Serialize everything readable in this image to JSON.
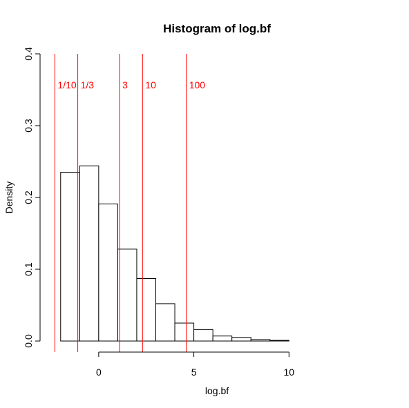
{
  "chart_data": {
    "type": "bar",
    "title": "Histogram of log.bf",
    "xlabel": "log.bf",
    "ylabel": "Density",
    "xlim": [
      -2.5,
      14.2
    ],
    "ylim": [
      0,
      0.4
    ],
    "x_ticks": [
      0,
      5,
      10
    ],
    "y_ticks": [
      0.0,
      0.1,
      0.2,
      0.3,
      0.4
    ],
    "x_tick_labels": [
      "0",
      "5",
      "10"
    ],
    "y_tick_labels": [
      "0.0",
      "0.1",
      "0.2",
      "0.3",
      "0.4"
    ],
    "bins": [
      {
        "x0": -2,
        "x1": -1,
        "density": 0.235
      },
      {
        "x0": -1,
        "x1": 0,
        "density": 0.244
      },
      {
        "x0": 0,
        "x1": 1,
        "density": 0.191
      },
      {
        "x0": 1,
        "x1": 2,
        "density": 0.128
      },
      {
        "x0": 2,
        "x1": 3,
        "density": 0.087
      },
      {
        "x0": 3,
        "x1": 4,
        "density": 0.052
      },
      {
        "x0": 4,
        "x1": 5,
        "density": 0.025
      },
      {
        "x0": 5,
        "x1": 6,
        "density": 0.016
      },
      {
        "x0": 6,
        "x1": 7,
        "density": 0.007
      },
      {
        "x0": 7,
        "x1": 8,
        "density": 0.005
      },
      {
        "x0": 8,
        "x1": 9,
        "density": 0.002
      },
      {
        "x0": 9,
        "x1": 10,
        "density": 0.001
      },
      {
        "x0": 10,
        "x1": 11,
        "density": 0.0
      },
      {
        "x0": 11,
        "x1": 12,
        "density": 0.0
      },
      {
        "x0": 12,
        "x1": 13,
        "density": 0.0
      },
      {
        "x0": 13,
        "x1": 14,
        "density": 0.0
      }
    ],
    "reference_lines": [
      {
        "x": -2.303,
        "label": "1/10"
      },
      {
        "x": -1.099,
        "label": "1/3"
      },
      {
        "x": 1.099,
        "label": "3"
      },
      {
        "x": 2.303,
        "label": "10"
      },
      {
        "x": 4.605,
        "label": "100"
      }
    ],
    "reference_line_color": "#FF0000",
    "reference_label_y": 0.35,
    "bar_fill": "#FFFFFF",
    "bar_stroke": "#000000",
    "grid": false
  }
}
